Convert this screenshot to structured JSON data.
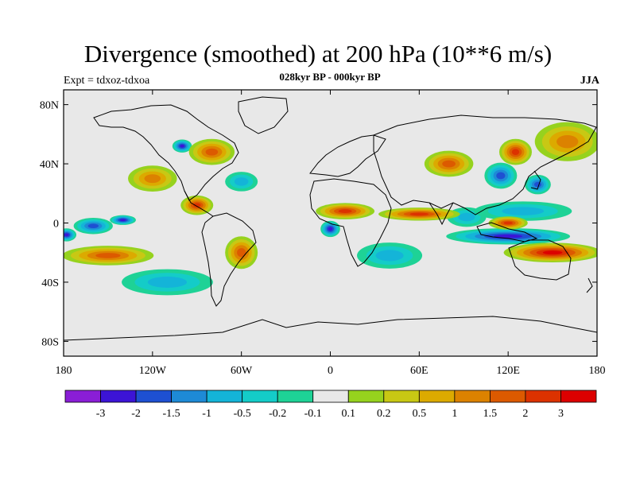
{
  "title": "Divergence (smoothed) at 200 hPa (10**6 m/s)",
  "subtitle": "028kyr BP - 000kyr BP",
  "experiment": "Expt = tdxoz-tdxoa",
  "season": "JJA",
  "map": {
    "projection": "cylindrical-equidistant",
    "lon_range": [
      -180,
      180
    ],
    "lat_range": [
      -90,
      90
    ],
    "lat_ticks": [
      {
        "value": 80,
        "label": "80N"
      },
      {
        "value": 40,
        "label": "40N"
      },
      {
        "value": 0,
        "label": "0"
      },
      {
        "value": -40,
        "label": "40S"
      },
      {
        "value": -80,
        "label": "80S"
      }
    ],
    "lon_ticks": [
      {
        "value": -180,
        "label": "180"
      },
      {
        "value": -120,
        "label": "120W"
      },
      {
        "value": -60,
        "label": "60W"
      },
      {
        "value": 0,
        "label": "0"
      },
      {
        "value": 60,
        "label": "60E"
      },
      {
        "value": 120,
        "label": "120E"
      },
      {
        "value": 180,
        "label": "180"
      }
    ],
    "background_color": "#e8e8e8",
    "anomaly_patches": [
      {
        "lon": -160,
        "lat": -2,
        "level": -2,
        "rx": 12,
        "ry": 5
      },
      {
        "lon": -140,
        "lat": 2,
        "level": -3,
        "rx": 8,
        "ry": 3
      },
      {
        "lon": -178,
        "lat": -8,
        "level": -3,
        "rx": 6,
        "ry": 4
      },
      {
        "lon": -100,
        "lat": 52,
        "level": -3,
        "rx": 6,
        "ry": 4
      },
      {
        "lon": -60,
        "lat": 28,
        "level": -1,
        "rx": 10,
        "ry": 6
      },
      {
        "lon": 0,
        "lat": -4,
        "level": -3,
        "rx": 6,
        "ry": 5
      },
      {
        "lon": 120,
        "lat": -9,
        "level": -3,
        "rx": 38,
        "ry": 5
      },
      {
        "lon": 115,
        "lat": 32,
        "level": -2,
        "rx": 10,
        "ry": 8
      },
      {
        "lon": 140,
        "lat": 26,
        "level": -2,
        "rx": 8,
        "ry": 6
      },
      {
        "lon": 92,
        "lat": 4,
        "level": -1,
        "rx": 12,
        "ry": 6
      },
      {
        "lon": -110,
        "lat": -40,
        "level": -1,
        "rx": 28,
        "ry": 8
      },
      {
        "lon": 40,
        "lat": -22,
        "level": -1,
        "rx": 20,
        "ry": 8
      },
      {
        "lon": 130,
        "lat": 8,
        "level": -1,
        "rx": 30,
        "ry": 6
      },
      {
        "lon": -90,
        "lat": 12,
        "level": 2,
        "rx": 10,
        "ry": 6
      },
      {
        "lon": -60,
        "lat": -20,
        "level": 1.5,
        "rx": 10,
        "ry": 10
      },
      {
        "lon": 10,
        "lat": 8,
        "level": 2,
        "rx": 18,
        "ry": 5
      },
      {
        "lon": 60,
        "lat": 6,
        "level": 2,
        "rx": 25,
        "ry": 4
      },
      {
        "lon": 150,
        "lat": -20,
        "level": 3,
        "rx": 30,
        "ry": 6
      },
      {
        "lon": 120,
        "lat": 0,
        "level": 2,
        "rx": 12,
        "ry": 4
      },
      {
        "lon": -150,
        "lat": -22,
        "level": 1.5,
        "rx": 28,
        "ry": 6
      },
      {
        "lon": -80,
        "lat": 48,
        "level": 1.5,
        "rx": 14,
        "ry": 8
      },
      {
        "lon": 125,
        "lat": 48,
        "level": 2,
        "rx": 10,
        "ry": 8
      },
      {
        "lon": 80,
        "lat": 40,
        "level": 1.5,
        "rx": 15,
        "ry": 8
      },
      {
        "lon": -120,
        "lat": 30,
        "level": 1,
        "rx": 15,
        "ry": 8
      },
      {
        "lon": 160,
        "lat": 55,
        "level": 1,
        "rx": 20,
        "ry": 12
      }
    ]
  },
  "colorbar": {
    "colors": [
      "#8a1ed6",
      "#3c14d6",
      "#1e50d2",
      "#1e8ad6",
      "#14b4d8",
      "#14ccc8",
      "#1ed296",
      "#e8e8e8",
      "#96d21e",
      "#c8c814",
      "#dcaa00",
      "#dc8200",
      "#dc5a00",
      "#dc3200",
      "#dc0000"
    ],
    "labels": [
      "-3",
      "-2",
      "-1.5",
      "-1",
      "-0.5",
      "-0.2",
      "-0.1",
      "0.1",
      "0.2",
      "0.5",
      "1",
      "1.5",
      "2",
      "3"
    ]
  }
}
